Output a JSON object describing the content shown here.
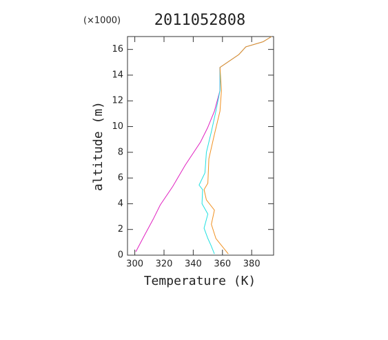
{
  "chart_data": {
    "type": "line",
    "title": "2011052808",
    "y_multiplier": "(×1000)",
    "x_label": "Temperature (K)",
    "y_label": "altitude (m)",
    "xlim": [
      295,
      395
    ],
    "xticks": [
      300,
      320,
      340,
      360,
      380
    ],
    "ylim": [
      0,
      17
    ],
    "yticks": [
      0,
      2,
      4,
      6,
      8,
      10,
      12,
      14,
      16
    ],
    "series": [
      {
        "color": "#e020c0",
        "x": [
          300.7,
          306.9,
          312.6,
          317.4,
          326,
          334.5,
          345,
          349.8,
          354.5,
          358.3,
          358.3,
          371.2,
          376,
          387.9,
          393.6
        ],
        "values": [
          0.27,
          1.6,
          2.8,
          3.9,
          5.35,
          7,
          8.8,
          9.9,
          11.2,
          12.8,
          14.6,
          15.6,
          16.2,
          16.6,
          17
        ]
      },
      {
        "color": "#20e0e0",
        "x": [
          354.5,
          352,
          350,
          347.4,
          350,
          346,
          346.4,
          344,
          348,
          349,
          352.4,
          355.5,
          358.3,
          358.3,
          371.2,
          376,
          387.9,
          393.6
        ],
        "values": [
          0.1,
          0.8,
          1.3,
          2.1,
          3.2,
          4,
          5.1,
          5.45,
          6.4,
          8,
          9.6,
          11.2,
          12.8,
          14.6,
          15.6,
          16.2,
          16.6,
          17
        ]
      },
      {
        "color": "#f09020",
        "x": [
          364,
          359,
          355.5,
          352.4,
          354.5,
          349,
          347.4,
          350,
          350.7,
          354.5,
          358.3,
          359.3,
          358.3,
          371.2,
          376,
          387.9,
          393.6
        ],
        "values": [
          0.1,
          0.8,
          1.3,
          2.4,
          3.5,
          4.3,
          5.1,
          5.6,
          7.5,
          9.4,
          11.2,
          12.8,
          14.6,
          15.6,
          16.2,
          16.6,
          17
        ]
      }
    ]
  }
}
